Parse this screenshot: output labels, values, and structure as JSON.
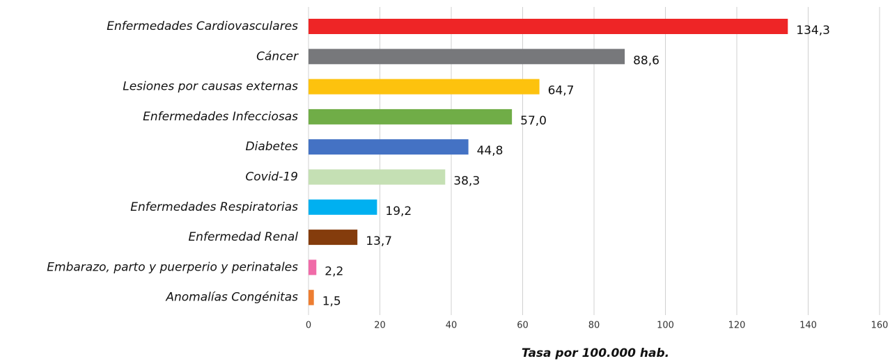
{
  "chart_data": {
    "type": "barh",
    "x_label": "Tasa por 100.000 hab.",
    "categories": [
      "Enfermedades Cardiovasculares",
      "Cáncer",
      "Lesiones por causas externas",
      "Enfermedades Infecciosas",
      "Diabetes",
      "Covid-19",
      "Enfermedades Respiratorias",
      "Enfermedad Renal",
      "Embarazo, parto y puerperio y perinatales",
      "Anomalías Congénitas"
    ],
    "values": [
      134.3,
      88.6,
      64.7,
      57.0,
      44.8,
      38.3,
      19.2,
      13.7,
      2.2,
      1.5
    ],
    "value_labels": [
      "134,3",
      "88,6",
      "64,7",
      "57,0",
      "44,8",
      "38,3",
      "19,2",
      "13,7",
      "2,2",
      "1,5"
    ],
    "colors": [
      "#ee2526",
      "#77787b",
      "#fdc20e",
      "#70ad47",
      "#4472c4",
      "#c5e0b4",
      "#00b0f0",
      "#843c0c",
      "#f06ba8",
      "#ed7d31"
    ],
    "xlim": [
      0,
      160
    ],
    "xticks": [
      0,
      20,
      40,
      60,
      80,
      100,
      120,
      140,
      160
    ],
    "grid": true
  }
}
